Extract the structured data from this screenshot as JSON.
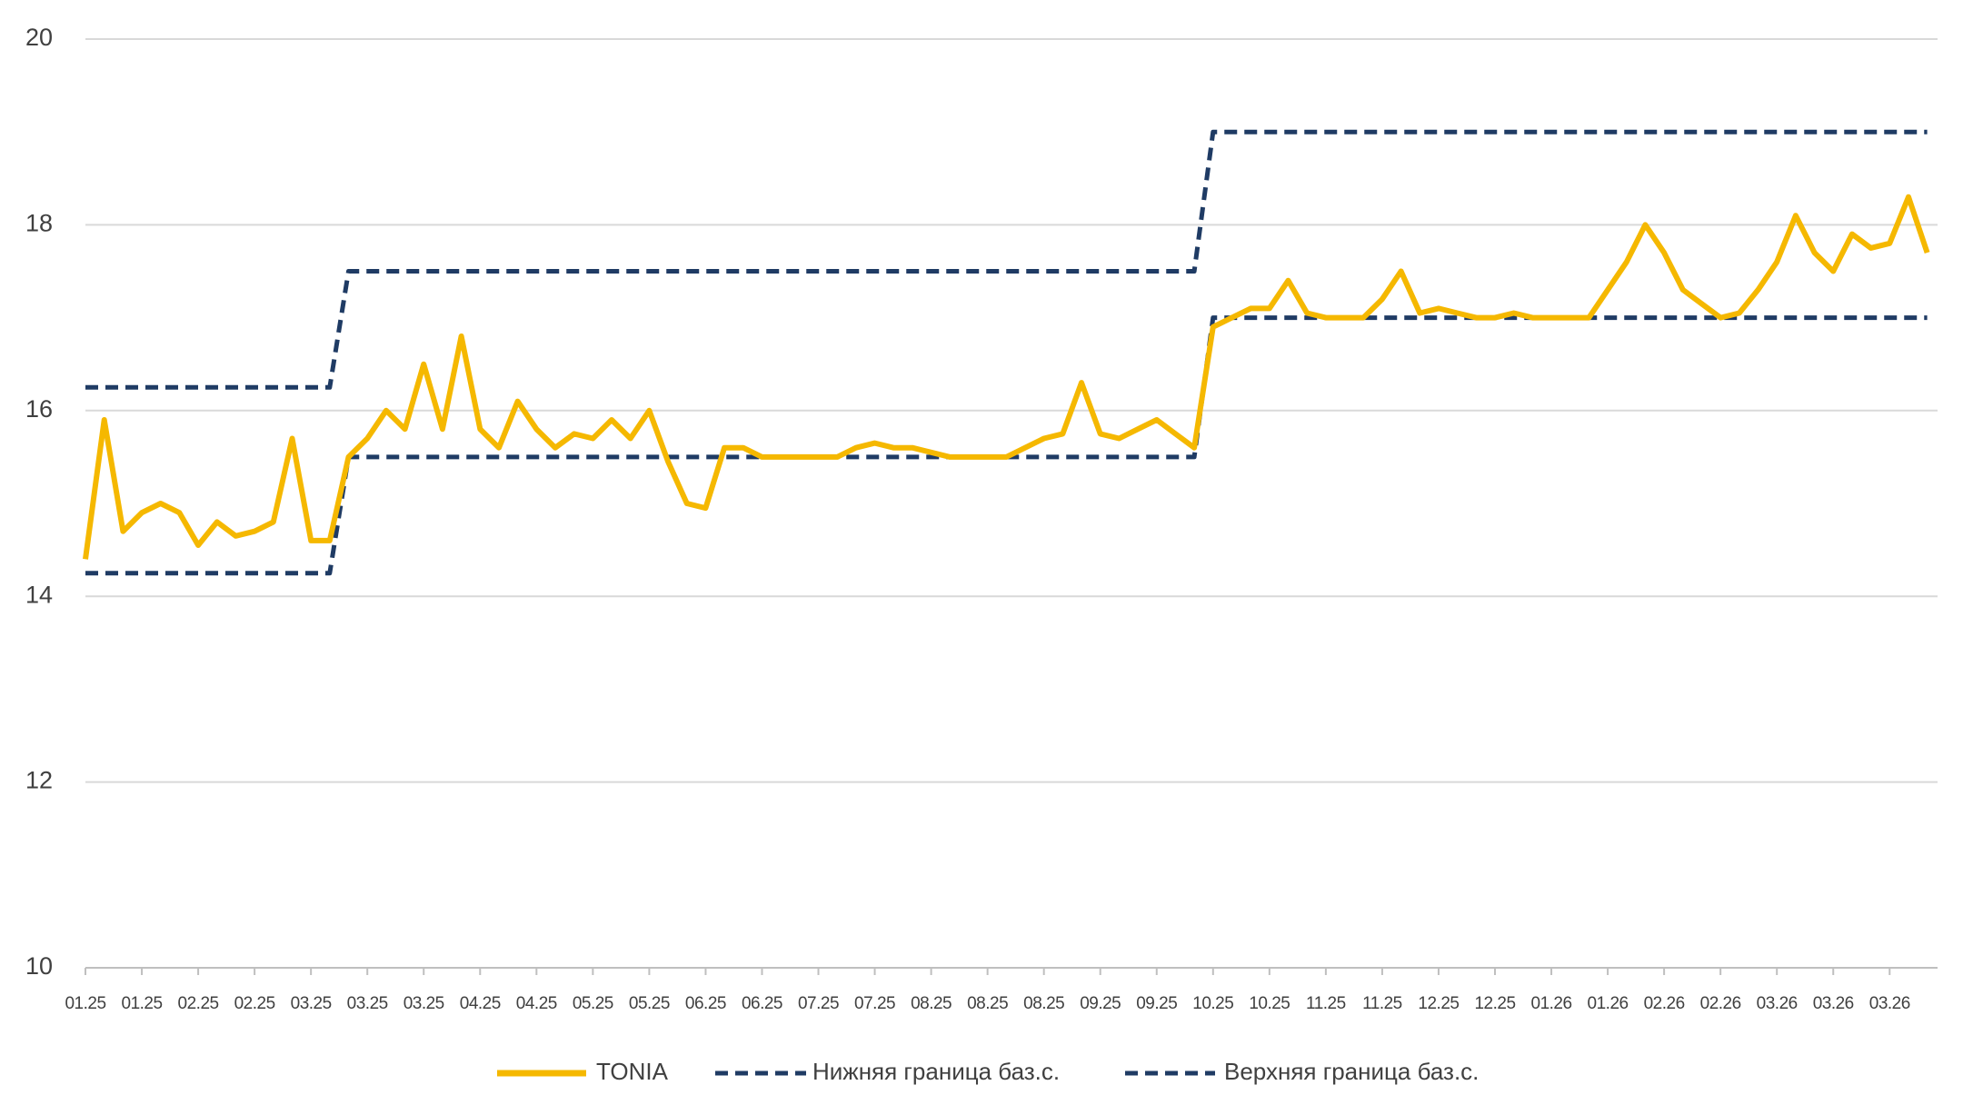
{
  "chart_data": {
    "type": "line",
    "categories": [
      "01.25",
      null,
      null,
      "01.25",
      null,
      null,
      "02.25",
      null,
      null,
      "02.25",
      null,
      null,
      "03.25",
      null,
      null,
      "03.25",
      null,
      null,
      "03.25",
      null,
      null,
      "04.25",
      null,
      null,
      "04.25",
      null,
      null,
      "05.25",
      null,
      null,
      "05.25",
      null,
      null,
      "06.25",
      null,
      null,
      "06.25",
      null,
      null,
      "07.25",
      null,
      null,
      "07.25",
      null,
      null,
      "08.25",
      null,
      null,
      "08.25",
      null,
      null,
      "08.25",
      null,
      null,
      "09.25",
      null,
      null,
      "09.25",
      null,
      null,
      "10.25",
      null,
      null,
      "10.25",
      null,
      null,
      "11.25",
      null,
      null,
      "11.25",
      null,
      null,
      "12.25",
      null,
      null,
      "12.25",
      null,
      null,
      "01.26",
      null,
      null,
      "01.26",
      null,
      null,
      "02.26",
      null,
      null,
      "02.26",
      null,
      null,
      "03.26",
      null,
      null,
      "03.26",
      null,
      null,
      "03.26",
      null,
      null
    ],
    "series": [
      {
        "name": "TONIA",
        "color": "#f5b800",
        "style": "solid",
        "values": [
          14.4,
          15.9,
          14.7,
          14.9,
          15.0,
          14.9,
          14.55,
          14.8,
          14.65,
          14.7,
          14.8,
          15.7,
          14.6,
          14.6,
          15.5,
          15.7,
          16.0,
          15.8,
          16.5,
          15.8,
          16.8,
          15.8,
          15.6,
          16.1,
          15.8,
          15.6,
          15.75,
          15.7,
          15.9,
          15.7,
          16.0,
          15.45,
          15.0,
          14.95,
          15.6,
          15.6,
          15.5,
          15.5,
          15.5,
          15.5,
          15.5,
          15.6,
          15.65,
          15.6,
          15.6,
          15.55,
          15.5,
          15.5,
          15.5,
          15.5,
          15.6,
          15.7,
          15.75,
          16.3,
          15.75,
          15.7,
          15.8,
          15.9,
          15.75,
          15.6,
          16.9,
          17.0,
          17.1,
          17.1,
          17.4,
          17.05,
          17.0,
          17.0,
          17.0,
          17.2,
          17.5,
          17.05,
          17.1,
          17.05,
          17.0,
          17.0,
          17.05,
          17.0,
          17.0,
          17.0,
          17.0,
          17.3,
          17.6,
          18.0,
          17.7,
          17.3,
          17.15,
          17.0,
          17.05,
          17.3,
          17.6,
          18.1,
          17.7,
          17.5,
          17.9,
          17.75,
          17.8,
          18.3,
          17.7
        ]
      },
      {
        "name": "Нижняя граница баз.с.",
        "color": "#1f3b64",
        "style": "dashed",
        "values": [
          14.25,
          14.25,
          14.25,
          14.25,
          14.25,
          14.25,
          14.25,
          14.25,
          14.25,
          14.25,
          14.25,
          14.25,
          14.25,
          14.25,
          15.5,
          15.5,
          15.5,
          15.5,
          15.5,
          15.5,
          15.5,
          15.5,
          15.5,
          15.5,
          15.5,
          15.5,
          15.5,
          15.5,
          15.5,
          15.5,
          15.5,
          15.5,
          15.5,
          15.5,
          15.5,
          15.5,
          15.5,
          15.5,
          15.5,
          15.5,
          15.5,
          15.5,
          15.5,
          15.5,
          15.5,
          15.5,
          15.5,
          15.5,
          15.5,
          15.5,
          15.5,
          15.5,
          15.5,
          15.5,
          15.5,
          15.5,
          15.5,
          15.5,
          15.5,
          15.5,
          17,
          17,
          17,
          17,
          17,
          17,
          17,
          17,
          17,
          17,
          17,
          17,
          17,
          17,
          17,
          17,
          17,
          17,
          17,
          17,
          17,
          17,
          17,
          17,
          17,
          17,
          17,
          17,
          17,
          17,
          17,
          17,
          17,
          17,
          17,
          17,
          17,
          17,
          17
        ]
      },
      {
        "name": "Верхняя граница баз.с.",
        "color": "#1f3b64",
        "style": "dashed",
        "values": [
          16.25,
          16.25,
          16.25,
          16.25,
          16.25,
          16.25,
          16.25,
          16.25,
          16.25,
          16.25,
          16.25,
          16.25,
          16.25,
          16.25,
          17.5,
          17.5,
          17.5,
          17.5,
          17.5,
          17.5,
          17.5,
          17.5,
          17.5,
          17.5,
          17.5,
          17.5,
          17.5,
          17.5,
          17.5,
          17.5,
          17.5,
          17.5,
          17.5,
          17.5,
          17.5,
          17.5,
          17.5,
          17.5,
          17.5,
          17.5,
          17.5,
          17.5,
          17.5,
          17.5,
          17.5,
          17.5,
          17.5,
          17.5,
          17.5,
          17.5,
          17.5,
          17.5,
          17.5,
          17.5,
          17.5,
          17.5,
          17.5,
          17.5,
          17.5,
          17.5,
          19,
          19,
          19,
          19,
          19,
          19,
          19,
          19,
          19,
          19,
          19,
          19,
          19,
          19,
          19,
          19,
          19,
          19,
          19,
          19,
          19,
          19,
          19,
          19,
          19,
          19,
          19,
          19,
          19,
          19,
          19,
          19,
          19,
          19,
          19,
          19,
          19,
          19,
          19
        ]
      }
    ],
    "ylim": [
      10,
      20
    ],
    "yticks": [
      10,
      12,
      14,
      16,
      18,
      20
    ],
    "grid": true,
    "legend": "bottom"
  }
}
